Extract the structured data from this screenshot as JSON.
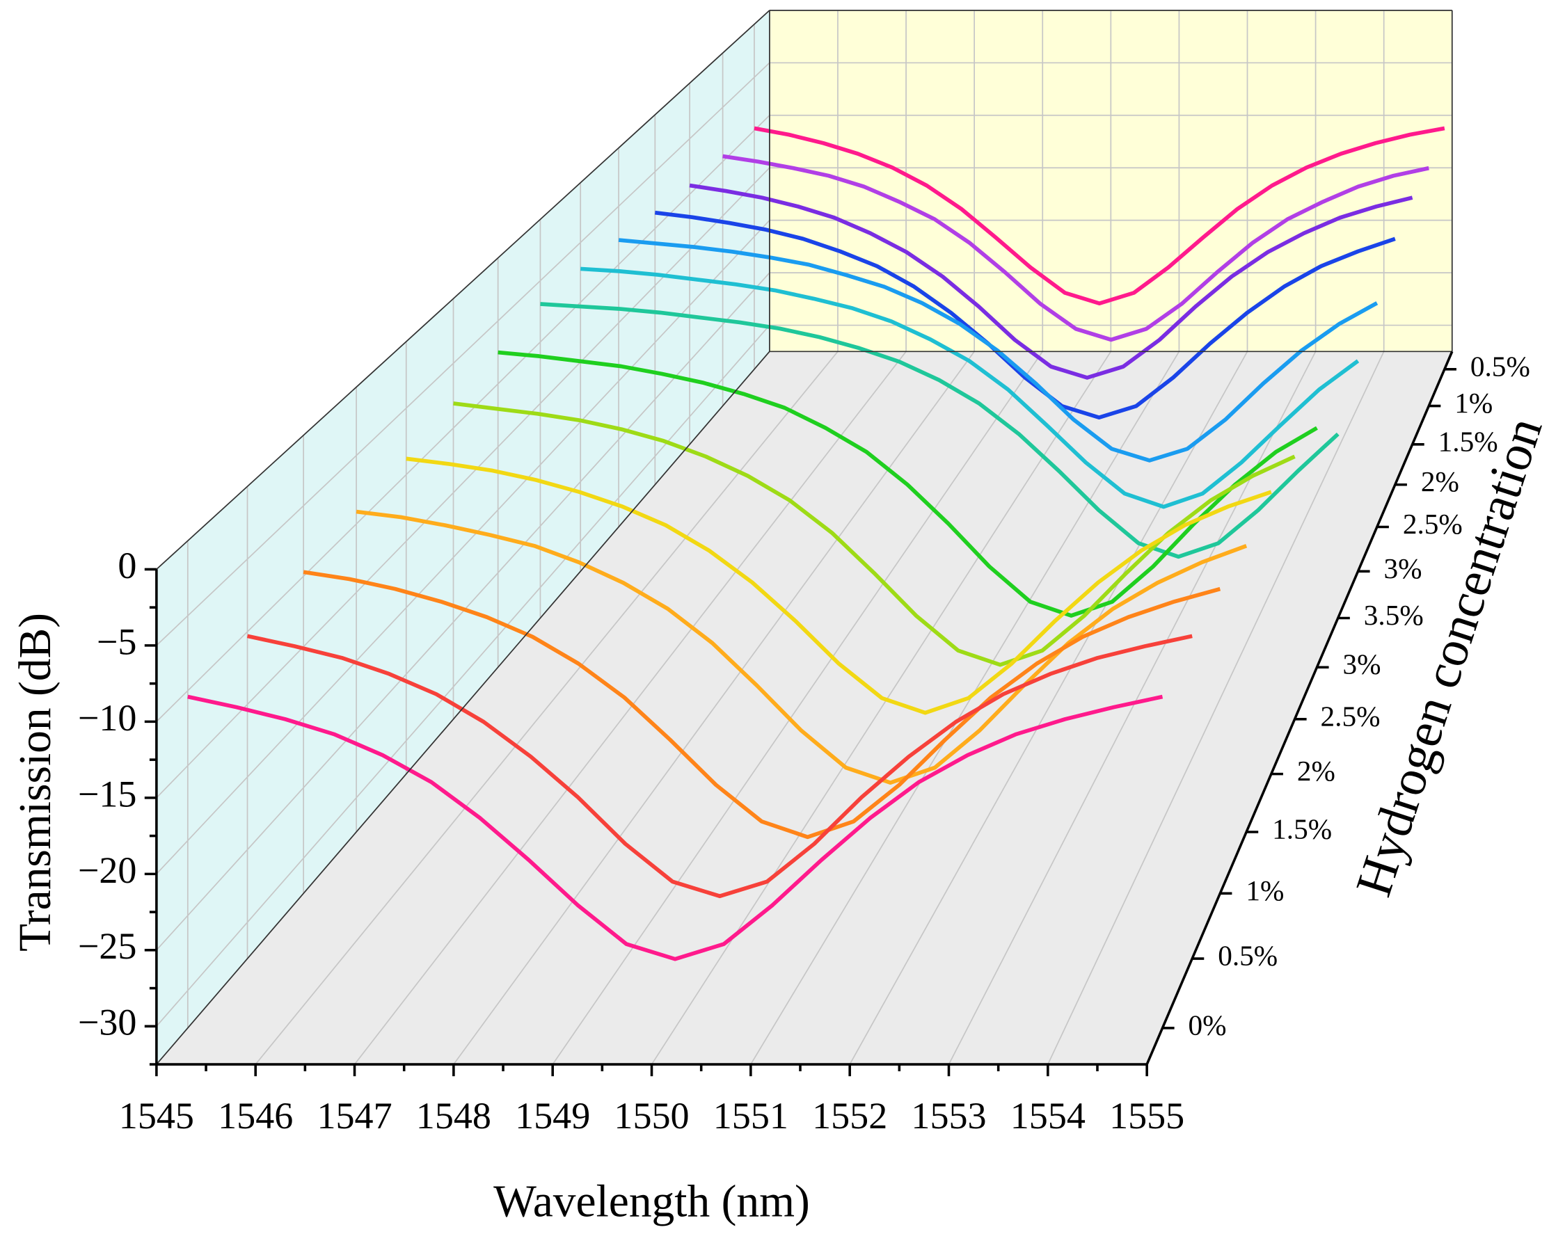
{
  "chart_data": {
    "type": "waterfall3d",
    "x_label": "Wavelength (nm)",
    "y_label": "Transmission (dB)",
    "z_label": "Hydrogen concentration",
    "xlim": [
      1545,
      1555
    ],
    "xticks": [
      1545,
      1546,
      1547,
      1548,
      1549,
      1550,
      1551,
      1552,
      1553,
      1554,
      1555
    ],
    "xminorticks": [
      1545.5,
      1546.5,
      1547.5,
      1548.5,
      1549.5,
      1550.5,
      1551.5,
      1552.5,
      1553.5,
      1554.5
    ],
    "ylim": [
      -32.5,
      0
    ],
    "yticks": [
      0,
      {
        "value": -5,
        "label": "−5"
      },
      {
        "value": -10,
        "label": "−10"
      },
      {
        "value": -15,
        "label": "−15"
      },
      {
        "value": -20,
        "label": "−20"
      },
      {
        "value": -25,
        "label": "−25"
      },
      {
        "value": -30,
        "label": "−30"
      }
    ],
    "yminorticks": [
      -2.5,
      -7.5,
      -12.5,
      -17.5,
      -22.5,
      -27.5,
      -32.5
    ],
    "grid": true,
    "x": [
      1545,
      1545.5,
      1546,
      1546.5,
      1547,
      1547.5,
      1548,
      1548.5,
      1549,
      1549.5,
      1550,
      1550.5,
      1551,
      1551.5,
      1552,
      1552.5,
      1553,
      1553.5,
      1554,
      1554.5,
      1555
    ],
    "series": [
      {
        "name": "0%",
        "color": "#ff1a8c",
        "values": [
          -10.4,
          -11.1,
          -11.9,
          -12.9,
          -14.3,
          -16.1,
          -18.5,
          -21.3,
          -24.3,
          -26.9,
          -27.9,
          -26.9,
          -24.3,
          -21.3,
          -18.5,
          -16.1,
          -14.3,
          -12.9,
          -11.9,
          -11.1,
          -10.4
        ]
      },
      {
        "name": "0.5%",
        "color": "#f7413a",
        "values": [
          -10.3,
          -11.0,
          -11.8,
          -12.9,
          -14.3,
          -16.2,
          -18.6,
          -21.4,
          -24.6,
          -27.2,
          -28.2,
          -27.2,
          -24.6,
          -21.4,
          -18.6,
          -16.2,
          -14.3,
          -12.9,
          -11.8,
          -11.0,
          -10.3
        ]
      },
      {
        "name": "1%",
        "color": "#ff8419",
        "values": [
          -9.7,
          -10.2,
          -10.9,
          -11.8,
          -12.9,
          -14.3,
          -16.2,
          -18.6,
          -21.6,
          -24.8,
          -27.4,
          -28.5,
          -27.4,
          -24.8,
          -21.6,
          -18.6,
          -16.2,
          -14.3,
          -12.9,
          -11.8,
          -10.9
        ]
      },
      {
        "name": "1.5%",
        "color": "#ffac1c",
        "values": [
          -9.1,
          -9.5,
          -10.1,
          -10.8,
          -11.6,
          -12.8,
          -14.3,
          -16.2,
          -18.7,
          -21.8,
          -25.1,
          -27.8,
          -28.9,
          -27.8,
          -25.1,
          -21.8,
          -18.7,
          -16.2,
          -14.3,
          -12.8,
          -11.6
        ]
      },
      {
        "name": "2%",
        "color": "#f2d813",
        "values": [
          -8.8,
          -9.2,
          -9.7,
          -10.4,
          -11.3,
          -12.4,
          -13.8,
          -15.7,
          -18.1,
          -21.0,
          -24.2,
          -26.8,
          -27.9,
          -26.8,
          -24.2,
          -21.0,
          -18.1,
          -15.7,
          -13.8,
          -12.4,
          -11.3
        ]
      },
      {
        "name": "2.5%",
        "color": "#9edb16",
        "values": [
          -8.1,
          -8.5,
          -8.9,
          -9.4,
          -10.1,
          -11.0,
          -12.2,
          -13.7,
          -15.6,
          -18.1,
          -21.2,
          -24.5,
          -27.2,
          -28.3,
          -27.2,
          -24.5,
          -21.2,
          -18.1,
          -15.6,
          -13.7,
          -12.2
        ]
      },
      {
        "name": "3%",
        "color": "#1fcf1f",
        "values": [
          -7.5,
          -7.8,
          -8.2,
          -8.6,
          -9.2,
          -9.9,
          -10.8,
          -11.9,
          -13.5,
          -15.4,
          -18.0,
          -21.1,
          -24.5,
          -27.3,
          -28.4,
          -27.3,
          -24.5,
          -21.1,
          -18.0,
          -15.4,
          -13.5
        ]
      },
      {
        "name": "3.5%",
        "color": "#1fc79a",
        "values": [
          -6.9,
          -7.1,
          -7.3,
          -7.6,
          -8.0,
          -8.4,
          -8.9,
          -9.6,
          -10.5,
          -11.6,
          -13.1,
          -15.0,
          -17.5,
          -20.5,
          -23.7,
          -26.4,
          -27.5,
          -26.4,
          -23.7,
          -20.5,
          -17.5
        ]
      },
      {
        "name": "3%",
        "color": "#1fbfd2",
        "values": [
          -7.2,
          -7.4,
          -7.7,
          -8.1,
          -8.5,
          -9.0,
          -9.7,
          -10.5,
          -11.6,
          -13.1,
          -14.9,
          -17.3,
          -20.3,
          -23.4,
          -26.0,
          -27.1,
          -26.0,
          -23.4,
          -20.3,
          -17.3,
          -14.9
        ]
      },
      {
        "name": "2.5%",
        "color": "#1a9cf0",
        "values": [
          -7.9,
          -8.2,
          -8.5,
          -8.9,
          -9.4,
          -10.0,
          -10.9,
          -11.9,
          -13.3,
          -15.1,
          -17.4,
          -20.2,
          -23.3,
          -25.8,
          -26.8,
          -25.8,
          -23.3,
          -20.2,
          -17.4,
          -15.1,
          -13.3
        ]
      },
      {
        "name": "2%",
        "color": "#1a44e8",
        "values": [
          -8.6,
          -9.0,
          -9.5,
          -10.1,
          -10.9,
          -12.0,
          -13.3,
          -15.1,
          -17.4,
          -20.1,
          -23.1,
          -25.6,
          -26.6,
          -25.6,
          -23.1,
          -20.1,
          -17.4,
          -15.1,
          -13.3,
          -12.0,
          -10.9
        ]
      },
      {
        "name": "1.5%",
        "color": "#7a2de2",
        "values": [
          -9.2,
          -9.7,
          -10.3,
          -11.1,
          -12.1,
          -13.5,
          -15.2,
          -17.4,
          -20.1,
          -23.1,
          -25.5,
          -26.5,
          -25.5,
          -23.1,
          -20.1,
          -17.4,
          -15.2,
          -13.5,
          -12.1,
          -11.1,
          -10.3
        ]
      },
      {
        "name": "1%",
        "color": "#b13fe6",
        "values": [
          -9.5,
          -10.0,
          -10.6,
          -11.3,
          -12.3,
          -13.7,
          -15.3,
          -17.5,
          -20.2,
          -23.1,
          -25.4,
          -26.4,
          -25.4,
          -23.1,
          -20.2,
          -17.5,
          -15.3,
          -13.7,
          -12.3,
          -11.3,
          -10.6
        ]
      },
      {
        "name": "0.5%",
        "color": "#ff1a8c",
        "values": [
          -9.8,
          -10.4,
          -11.2,
          -12.2,
          -13.5,
          -15.2,
          -17.4,
          -20.1,
          -22.9,
          -25.3,
          -26.3,
          -25.3,
          -22.9,
          -20.1,
          -17.4,
          -15.2,
          -13.5,
          -12.2,
          -11.2,
          -10.4,
          -9.8
        ]
      }
    ]
  }
}
